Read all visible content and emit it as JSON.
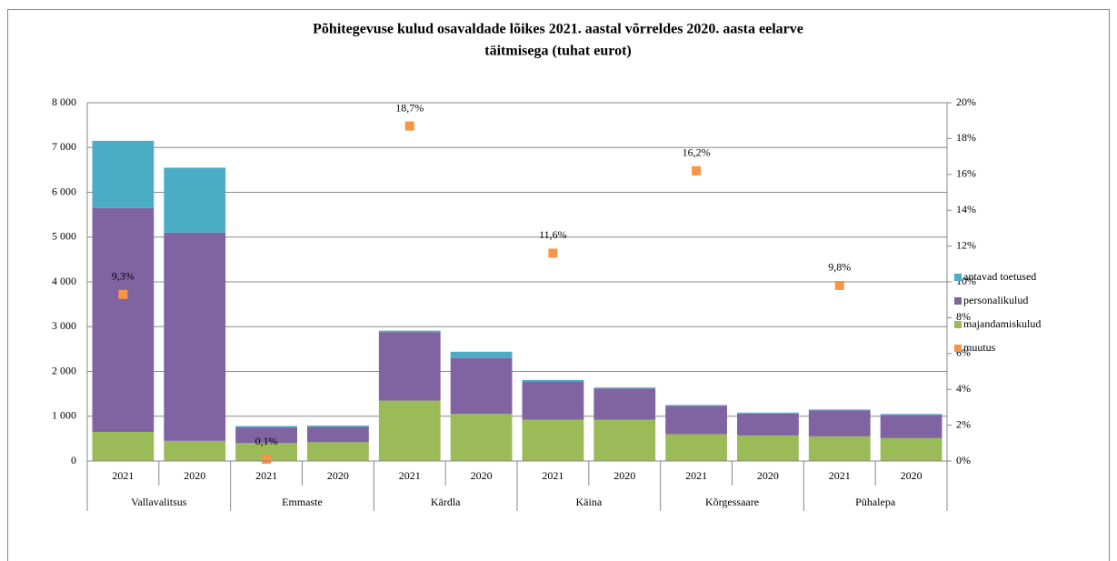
{
  "chart_data": {
    "type": "stacked-bar-scatter",
    "title": [
      "Põhitegevuse kulud osavaldade lõikes 2021. aastal võrreldes 2020. aasta eelarve",
      "täitmisega (tuhat eurot)"
    ],
    "categories": [
      "2021",
      "2020",
      "2021",
      "2020",
      "2021",
      "2020",
      "2021",
      "2020",
      "2021",
      "2020",
      "2021",
      "2020"
    ],
    "groups": [
      "Vallavalitsus",
      "Emmaste",
      "Kärdla",
      "Käina",
      "Kõrgessaare",
      "Pühalepa"
    ],
    "series": [
      {
        "name": "majandamiskulud",
        "color": "#9bbb59",
        "values": [
          650,
          450,
          400,
          420,
          1350,
          1050,
          920,
          920,
          600,
          570,
          550,
          510
        ]
      },
      {
        "name": "personalikulud",
        "color": "#8064a2",
        "values": [
          5000,
          4650,
          350,
          340,
          1530,
          1250,
          860,
          700,
          630,
          490,
          580,
          520
        ]
      },
      {
        "name": "antavad toetused",
        "color": "#4bacc6",
        "values": [
          1500,
          1450,
          30,
          30,
          30,
          140,
          30,
          20,
          20,
          20,
          20,
          20
        ]
      },
      {
        "name": "muutus",
        "color": "#f79646",
        "axis": "y2",
        "type": "scatter",
        "values": [
          9.3,
          null,
          0.1,
          null,
          18.7,
          null,
          11.6,
          null,
          16.2,
          null,
          9.8,
          null
        ],
        "value_labels": [
          "9,3%",
          null,
          "0,1%",
          null,
          "18,7%",
          null,
          "11,6%",
          null,
          "16,2%",
          null,
          "9,8%",
          null
        ]
      }
    ],
    "ylim": [
      0,
      8000
    ],
    "yticks": [
      0,
      {
        "value": 1000,
        "label": "1 000"
      },
      {
        "value": 2000,
        "label": "2 000"
      },
      {
        "value": 3000,
        "label": "3 000"
      },
      {
        "value": 4000,
        "label": "4 000"
      },
      {
        "value": 5000,
        "label": "5 000"
      },
      {
        "value": 6000,
        "label": "6 000"
      },
      {
        "value": 7000,
        "label": "7 000"
      },
      {
        "value": 8000,
        "label": "8 000"
      }
    ],
    "y2lim": [
      0,
      20
    ],
    "y2ticks": [
      {
        "value": 0,
        "label": "0%"
      },
      {
        "value": 2,
        "label": "2%"
      },
      {
        "value": 4,
        "label": "4%"
      },
      {
        "value": 6,
        "label": "6%"
      },
      {
        "value": 8,
        "label": "8%"
      },
      {
        "value": 10,
        "label": "10%"
      },
      {
        "value": 12,
        "label": "12%"
      },
      {
        "value": 14,
        "label": "14%"
      },
      {
        "value": 16,
        "label": "16%"
      },
      {
        "value": 18,
        "label": "18%"
      },
      {
        "value": 20,
        "label": "20%"
      }
    ],
    "grid": true,
    "legend": "right"
  }
}
